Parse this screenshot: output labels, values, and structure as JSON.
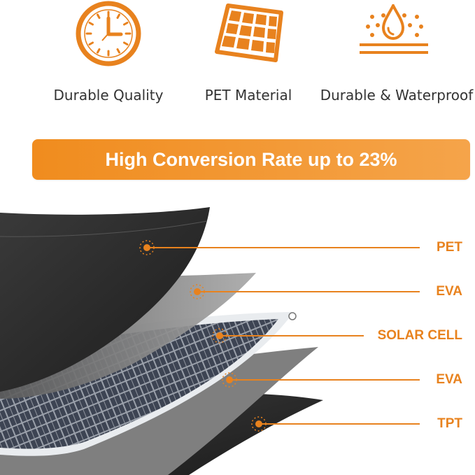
{
  "features": [
    {
      "icon": "clock-icon",
      "label": "Durable Quality"
    },
    {
      "icon": "solar-panel-icon",
      "label": "PET Material"
    },
    {
      "icon": "water-drop-icon",
      "label": "Durable & Waterproof"
    }
  ],
  "banner": {
    "text": "High Conversion Rate up to 23%"
  },
  "layers": [
    {
      "name": "PET"
    },
    {
      "name": "EVA"
    },
    {
      "name": "SOLAR CELL"
    },
    {
      "name": "EVA"
    },
    {
      "name": "TPT"
    }
  ],
  "colors": {
    "accent": "#e8821e",
    "banner": "#f29430",
    "dark_sheet": "#2b2b2b",
    "gray_sheet": "#8c8c8c"
  }
}
